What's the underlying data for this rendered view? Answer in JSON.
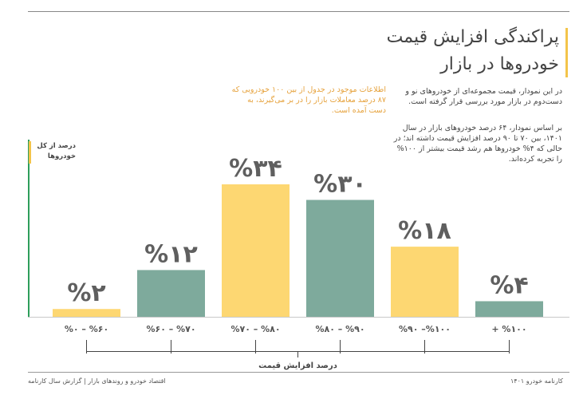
{
  "header": {
    "title_line1": "پراکندگی افزایش قیمت",
    "title_line2": "خودروها در بازار"
  },
  "note": "اطلاعات موجود در جدول از بین ۱۰۰ خودرویی که ۸۷ درصد معاملات بازار را در بر می‌گیرند، به دست آمده است.",
  "description": {
    "p1": "در این نمودار، قیمت مجموعه‌ای از خودروهای نو و دست‌دوم در بازار مورد بررسی قرار گرفته است.",
    "p2": "بر اساس نمودار، ۶۴ درصد خودروهای بازار در سال ۱۴۰۱، بین ۷۰ تا ۹۰ درصد افزایش قیمت داشته اند؛ در حالی که ۴% خودروها هم رشد قیمت بیشتر از ۱۰۰% را تجربه کرده‌اند."
  },
  "footer": {
    "left": "اقتصاد خودرو و روندهای بازار | گزارش سال کارنامه",
    "right": "کارنامه خودرو ۱۴۰۱"
  },
  "chart_data": {
    "type": "bar",
    "title": "پراکندگی افزایش قیمت خودروها در بازار",
    "ylabel": "درصد از کل خودروها",
    "xlabel": "درصد افزایش قیمت",
    "categories": [
      "%۰ – %۶۰",
      "%۶۰ – %۷۰",
      "%۷۰ – %۸۰",
      "%۸۰ – %۹۰",
      "%۹۰ –%۱۰۰",
      "+ %۱۰۰"
    ],
    "values": [
      2,
      12,
      34,
      30,
      18,
      4
    ],
    "value_labels": [
      "%۲",
      "%۱۲",
      "%۳۴",
      "%۳۰",
      "%۱۸",
      "%۴"
    ],
    "bar_colors": [
      "#fdd772",
      "#7eaa9c",
      "#fdd772",
      "#7eaa9c",
      "#fdd772",
      "#7eaa9c"
    ],
    "label_color": "#5f5f5f",
    "ylim": [
      0,
      34
    ],
    "grid": false
  }
}
